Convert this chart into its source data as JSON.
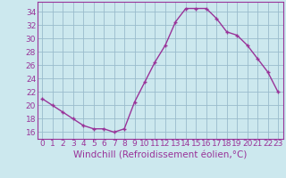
{
  "x": [
    0,
    1,
    2,
    3,
    4,
    5,
    6,
    7,
    8,
    9,
    10,
    11,
    12,
    13,
    14,
    15,
    16,
    17,
    18,
    19,
    20,
    21,
    22,
    23
  ],
  "y": [
    21,
    20,
    19,
    18,
    17,
    16.5,
    16.5,
    16,
    16.5,
    20.5,
    23.5,
    26.5,
    29,
    32.5,
    34.5,
    34.5,
    34.5,
    33,
    31,
    30.5,
    29,
    27,
    25,
    22
  ],
  "line_color": "#993399",
  "marker": "+",
  "bg_color": "#cce8ee",
  "grid_color": "#99bbcc",
  "xlabel": "Windchill (Refroidissement éolien,°C)",
  "ylim": [
    15.0,
    35.5
  ],
  "xlim": [
    -0.5,
    23.5
  ],
  "yticks": [
    16,
    18,
    20,
    22,
    24,
    26,
    28,
    30,
    32,
    34
  ],
  "xticks": [
    0,
    1,
    2,
    3,
    4,
    5,
    6,
    7,
    8,
    9,
    10,
    11,
    12,
    13,
    14,
    15,
    16,
    17,
    18,
    19,
    20,
    21,
    22,
    23
  ],
  "tick_label_fontsize": 6.5,
  "xlabel_fontsize": 7.5,
  "label_color": "#993399",
  "markersize": 3.5,
  "linewidth": 1.0
}
